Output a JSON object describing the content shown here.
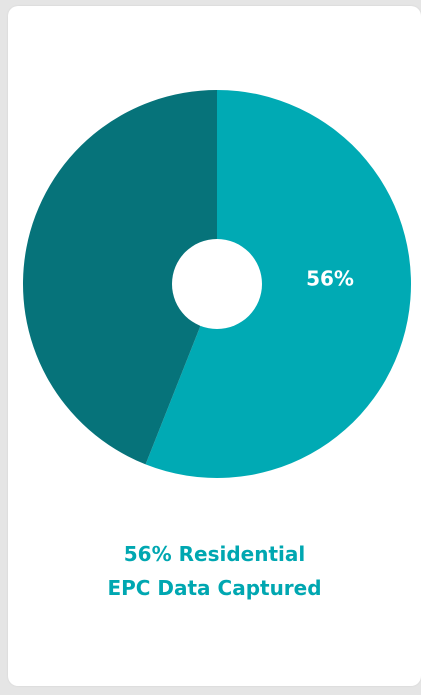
{
  "chart_data": {
    "type": "pie",
    "variant": "donut",
    "slices": [
      {
        "label": "Residential EPC Data Captured",
        "value": 56,
        "color": "#00aab4"
      },
      {
        "label": "",
        "value": 44,
        "color": "#06737a"
      }
    ],
    "data_label": "56%",
    "caption_lines": [
      "56% Residential",
      "EPC Data Captured"
    ]
  }
}
